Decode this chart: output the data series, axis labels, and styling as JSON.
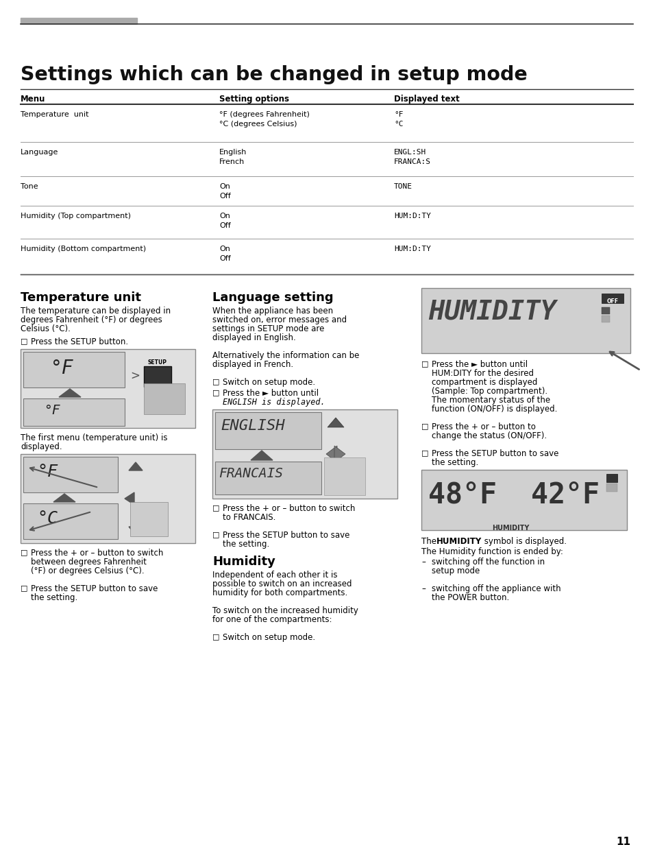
{
  "page_title": "Settings which can be changed in setup mode",
  "top_bar_color": "#aaaaaa",
  "table_headers": [
    "Menu",
    "Setting options",
    "Displayed text"
  ],
  "row_col1": [
    "Temperature  unit",
    "Language",
    "Tone",
    "Humidity (Top compartment)",
    "Humidity (Bottom compartment)"
  ],
  "row_col2": [
    "°F (degrees Fahrenheit)\n°C (degrees Celsius)",
    "English\nFrench",
    "On\nOff",
    "On\nOff",
    "On\nOff"
  ],
  "row_col3": [
    "°F\n°C",
    "ENGL:SH\nFRANCA:S",
    "TONE",
    "HUM:D:TY",
    "HUM:D:TY"
  ],
  "s1_title": "Temperature unit",
  "s2_title": "Language setting",
  "s3_title": "Humidity",
  "page_number": "11",
  "bg_color": "#ffffff",
  "text_color": "#000000"
}
